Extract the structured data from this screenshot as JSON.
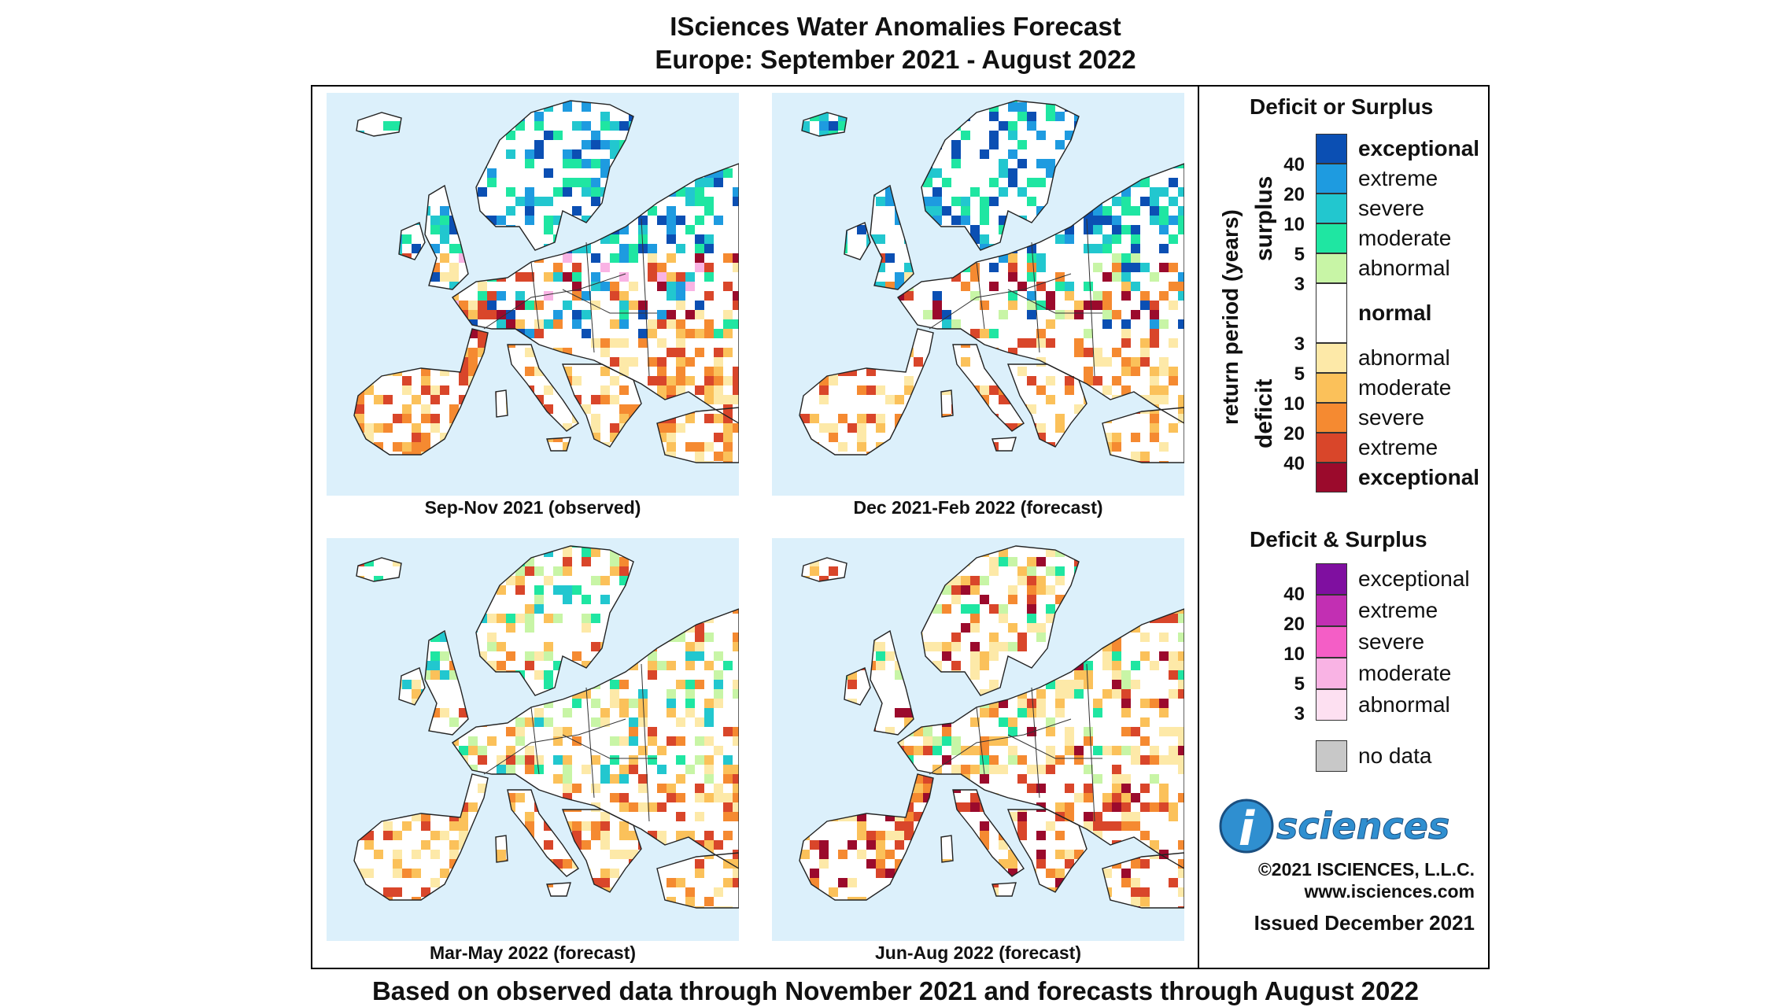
{
  "title_line1": "ISciences Water Anomalies Forecast",
  "title_line2": "Europe: September 2021 - August 2022",
  "footer": "Based on observed data through November 2021 and forecasts through August 2022",
  "panels": [
    {
      "caption": "Sep-Nov 2021 (observed)"
    },
    {
      "caption": "Dec 2021-Feb 2022 (forecast)"
    },
    {
      "caption": "Mar-May 2022 (forecast)"
    },
    {
      "caption": "Jun-Aug 2022 (forecast)"
    }
  ],
  "legend": {
    "heading1": "Deficit or Surplus",
    "axis_label": "return period (years)",
    "surplus_label": "surplus",
    "deficit_label": "deficit",
    "surplus_classes": [
      {
        "label": "exceptional",
        "color": "#0b4fb3"
      },
      {
        "label": "extreme",
        "color": "#1e9be0"
      },
      {
        "label": "severe",
        "color": "#22c7cf"
      },
      {
        "label": "moderate",
        "color": "#1fe6a2"
      },
      {
        "label": "abnormal",
        "color": "#c8f5a6"
      }
    ],
    "surplus_ticks": [
      "40",
      "20",
      "10",
      "5",
      "3"
    ],
    "normal_label": "normal",
    "normal_color": "#ffffff",
    "deficit_classes": [
      {
        "label": "abnormal",
        "color": "#fde9a8"
      },
      {
        "label": "moderate",
        "color": "#fbc15a"
      },
      {
        "label": "severe",
        "color": "#f58a31"
      },
      {
        "label": "extreme",
        "color": "#d9462a"
      },
      {
        "label": "exceptional",
        "color": "#9b0a2c"
      }
    ],
    "deficit_ticks": [
      "3",
      "5",
      "10",
      "20",
      "40"
    ],
    "heading2": "Deficit & Surplus",
    "both_classes": [
      {
        "label": "exceptional",
        "color": "#7f0fa0"
      },
      {
        "label": "extreme",
        "color": "#c22fb3"
      },
      {
        "label": "severe",
        "color": "#f45ec6"
      },
      {
        "label": "moderate",
        "color": "#f9b3e4"
      },
      {
        "label": "abnormal",
        "color": "#fde0f1"
      }
    ],
    "both_ticks": [
      "40",
      "20",
      "10",
      "5",
      "3"
    ],
    "nodata_label": "no data",
    "nodata_color": "#c8c8c8"
  },
  "logo": {
    "letter": "i",
    "word": "sciences",
    "color": "#2f8fd0"
  },
  "copyright": "©2021 ISCIENCES, L.L.C.",
  "website": "www.isciences.com",
  "issued": "Issued December 2021"
}
